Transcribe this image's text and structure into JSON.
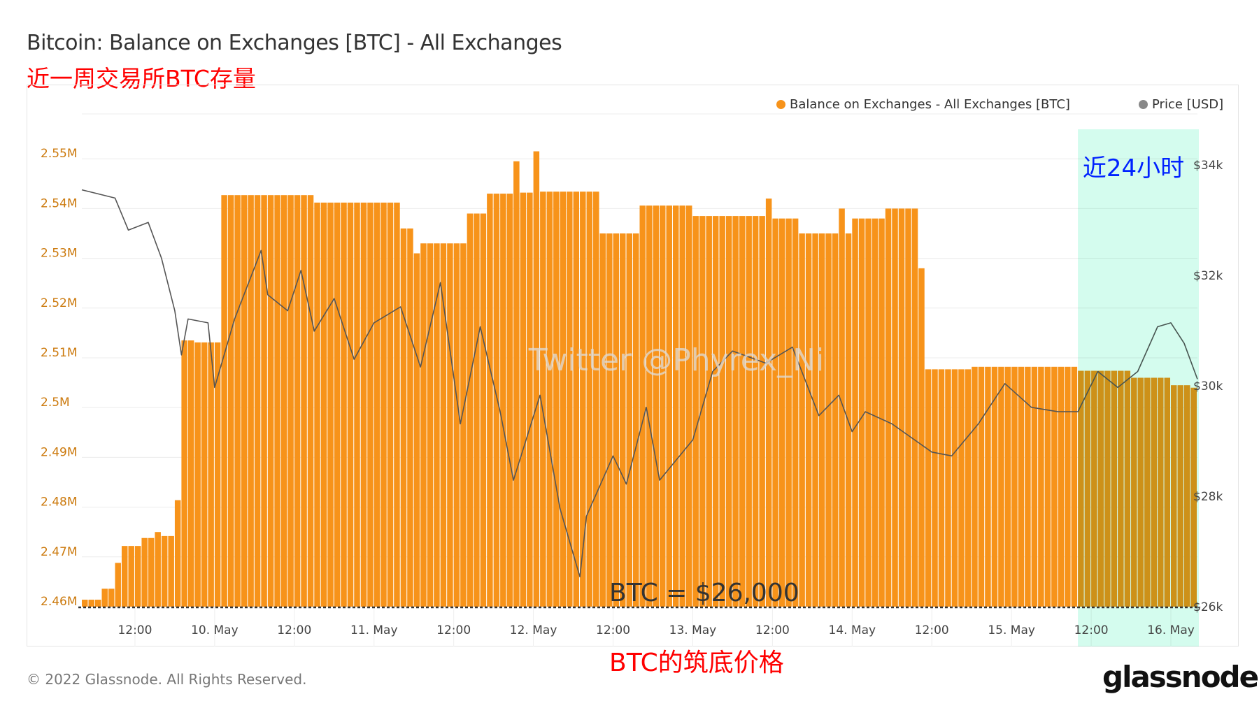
{
  "title": "Bitcoin: Balance on Exchanges [BTC] - All Exchanges",
  "subtitle": "近一周交易所BTC存量",
  "footer": {
    "copyright": "© 2022 Glassnode. All Rights Reserved.",
    "logo": "glassnode"
  },
  "annotations": {
    "highlight_label": "近24小时",
    "watermark": "Twitter @Phyrex_Ni",
    "floor_price": "BTC = $26,000",
    "floor_label": "BTC的筑底价格"
  },
  "colors": {
    "balance": "#f7931a",
    "price": "#555555",
    "highlight": "#d4fcee",
    "subtitle": "#ff0000",
    "highlight_label": "#0022ff"
  },
  "chart_data": {
    "type": "bar+line",
    "legend": [
      {
        "name": "Balance on Exchanges - All Exchanges [BTC]",
        "color": "#f7931a"
      },
      {
        "name": "Price [USD]",
        "color": "#888888"
      }
    ],
    "legend_position": "top-right",
    "grid": true,
    "x_range": [
      "2022-05-09T04:00",
      "2022-05-16T04:00"
    ],
    "x_ticks": [
      {
        "t": "2022-05-09T12:00",
        "label": "12:00"
      },
      {
        "t": "2022-05-10T00:00",
        "label": "10. May"
      },
      {
        "t": "2022-05-10T12:00",
        "label": "12:00"
      },
      {
        "t": "2022-05-11T00:00",
        "label": "11. May"
      },
      {
        "t": "2022-05-11T12:00",
        "label": "12:00"
      },
      {
        "t": "2022-05-12T00:00",
        "label": "12. May"
      },
      {
        "t": "2022-05-12T12:00",
        "label": "12:00"
      },
      {
        "t": "2022-05-13T00:00",
        "label": "13. May"
      },
      {
        "t": "2022-05-13T12:00",
        "label": "12:00"
      },
      {
        "t": "2022-05-14T00:00",
        "label": "14. May"
      },
      {
        "t": "2022-05-14T12:00",
        "label": "12:00"
      },
      {
        "t": "2022-05-15T00:00",
        "label": "15. May"
      },
      {
        "t": "2022-05-15T12:00",
        "label": "12:00"
      },
      {
        "t": "2022-05-16T00:00",
        "label": "16. May"
      }
    ],
    "y_left": {
      "range": [
        2.46,
        2.55
      ],
      "unit": "M BTC",
      "ticks": [
        "2.46M",
        "2.47M",
        "2.48M",
        "2.49M",
        "2.5M",
        "2.51M",
        "2.52M",
        "2.53M",
        "2.54M",
        "2.55M"
      ]
    },
    "y_right": {
      "range": [
        26,
        34
      ],
      "unit": "k USD",
      "ticks": [
        {
          "v": 26,
          "label": "$26k"
        },
        {
          "v": 28,
          "label": "$28k"
        },
        {
          "v": 30,
          "label": "$30k"
        },
        {
          "v": 32,
          "label": "$32k"
        },
        {
          "v": 34,
          "label": "$34k"
        }
      ]
    },
    "highlight_range": [
      "2022-05-15T10:00",
      "2022-05-16T04:00"
    ],
    "reference_line": {
      "price": 26
    },
    "balance_steps_millions": [
      [
        "2022-05-09T04:00",
        2.4614
      ],
      [
        "2022-05-09T07:00",
        2.4636
      ],
      [
        "2022-05-09T09:00",
        2.4688
      ],
      [
        "2022-05-09T10:00",
        2.4722
      ],
      [
        "2022-05-09T13:00",
        2.4738
      ],
      [
        "2022-05-09T15:00",
        2.475
      ],
      [
        "2022-05-09T16:00",
        2.4742
      ],
      [
        "2022-05-09T18:00",
        2.4814
      ],
      [
        "2022-05-09T19:00",
        2.5135
      ],
      [
        "2022-05-09T21:00",
        2.5131
      ],
      [
        "2022-05-10T01:00",
        2.5427
      ],
      [
        "2022-05-10T15:00",
        2.5412
      ],
      [
        "2022-05-11T04:00",
        2.536
      ],
      [
        "2022-05-11T06:00",
        2.531
      ],
      [
        "2022-05-11T07:00",
        2.533
      ],
      [
        "2022-05-11T14:00",
        2.539
      ],
      [
        "2022-05-11T17:00",
        2.543
      ],
      [
        "2022-05-11T21:00",
        2.5495
      ],
      [
        "2022-05-11T22:00",
        2.5432
      ],
      [
        "2022-05-12T00:00",
        2.5515
      ],
      [
        "2022-05-12T01:00",
        2.5434
      ],
      [
        "2022-05-12T10:00",
        2.535
      ],
      [
        "2022-05-12T16:00",
        2.5406
      ],
      [
        "2022-05-13T00:00",
        2.5385
      ],
      [
        "2022-05-13T11:00",
        2.542
      ],
      [
        "2022-05-13T12:00",
        2.538
      ],
      [
        "2022-05-13T16:00",
        2.535
      ],
      [
        "2022-05-13T22:00",
        2.54
      ],
      [
        "2022-05-13T23:00",
        2.535
      ],
      [
        "2022-05-14T00:00",
        2.538
      ],
      [
        "2022-05-14T05:00",
        2.54
      ],
      [
        "2022-05-14T10:00",
        2.528
      ],
      [
        "2022-05-14T11:00",
        2.5077
      ],
      [
        "2022-05-14T18:00",
        2.5082
      ],
      [
        "2022-05-15T10:00",
        2.5074
      ],
      [
        "2022-05-15T18:00",
        2.506
      ],
      [
        "2022-05-16T00:00",
        2.5045
      ],
      [
        "2022-05-16T03:00",
        2.504
      ]
    ],
    "price_k_usd": [
      [
        "2022-05-09T04:00",
        33.55
      ],
      [
        "2022-05-09T09:00",
        33.4
      ],
      [
        "2022-05-09T11:00",
        32.82
      ],
      [
        "2022-05-09T14:00",
        32.96
      ],
      [
        "2022-05-09T16:00",
        32.31
      ],
      [
        "2022-05-09T18:00",
        31.36
      ],
      [
        "2022-05-09T19:00",
        30.56
      ],
      [
        "2022-05-09T20:00",
        31.21
      ],
      [
        "2022-05-09T23:00",
        31.14
      ],
      [
        "2022-05-10T00:00",
        29.97
      ],
      [
        "2022-05-10T03:00",
        31.21
      ],
      [
        "2022-05-10T07:00",
        32.45
      ],
      [
        "2022-05-10T08:00",
        31.65
      ],
      [
        "2022-05-10T11:00",
        31.36
      ],
      [
        "2022-05-10T13:00",
        32.09
      ],
      [
        "2022-05-10T15:00",
        30.99
      ],
      [
        "2022-05-10T18:00",
        31.58
      ],
      [
        "2022-05-10T21:00",
        30.48
      ],
      [
        "2022-05-11T00:00",
        31.14
      ],
      [
        "2022-05-11T04:00",
        31.43
      ],
      [
        "2022-05-11T07:00",
        30.34
      ],
      [
        "2022-05-11T10:00",
        31.87
      ],
      [
        "2022-05-11T13:00",
        29.31
      ],
      [
        "2022-05-11T16:00",
        31.07
      ],
      [
        "2022-05-11T19:00",
        29.53
      ],
      [
        "2022-05-11T21:00",
        28.29
      ],
      [
        "2022-05-12T01:00",
        29.83
      ],
      [
        "2022-05-12T04:00",
        27.78
      ],
      [
        "2022-05-12T07:00",
        26.54
      ],
      [
        "2022-05-12T08:00",
        27.64
      ],
      [
        "2022-05-12T12:00",
        28.73
      ],
      [
        "2022-05-12T14:00",
        28.22
      ],
      [
        "2022-05-12T17:00",
        29.61
      ],
      [
        "2022-05-12T19:00",
        28.29
      ],
      [
        "2022-05-13T00:00",
        29.02
      ],
      [
        "2022-05-13T03:00",
        30.26
      ],
      [
        "2022-05-13T06:00",
        30.63
      ],
      [
        "2022-05-13T11:00",
        30.41
      ],
      [
        "2022-05-13T15:00",
        30.7
      ],
      [
        "2022-05-13T19:00",
        29.46
      ],
      [
        "2022-05-13T22:00",
        29.83
      ],
      [
        "2022-05-14T00:00",
        29.17
      ],
      [
        "2022-05-14T02:00",
        29.53
      ],
      [
        "2022-05-14T06:00",
        29.31
      ],
      [
        "2022-05-14T12:00",
        28.8
      ],
      [
        "2022-05-14T15:00",
        28.73
      ],
      [
        "2022-05-14T19:00",
        29.31
      ],
      [
        "2022-05-14T23:00",
        30.04
      ],
      [
        "2022-05-15T03:00",
        29.61
      ],
      [
        "2022-05-15T07:00",
        29.53
      ],
      [
        "2022-05-15T10:00",
        29.53
      ],
      [
        "2022-05-15T13:00",
        30.26
      ],
      [
        "2022-05-15T16:00",
        29.97
      ],
      [
        "2022-05-15T19:00",
        30.26
      ],
      [
        "2022-05-15T22:00",
        31.07
      ],
      [
        "2022-05-16T00:00",
        31.14
      ],
      [
        "2022-05-16T02:00",
        30.77
      ],
      [
        "2022-05-16T04:00",
        30.12
      ]
    ]
  }
}
